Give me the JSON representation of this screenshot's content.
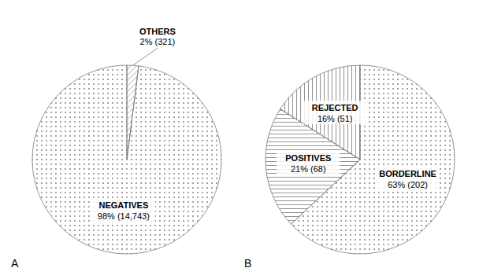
{
  "chart_data": [
    {
      "type": "pie",
      "title": "A",
      "categories": [
        "OTHERS",
        "NEGATIVES"
      ],
      "values": [
        2,
        98
      ],
      "value_labels": [
        "2% (321)",
        "98% (14,743)"
      ],
      "data_labels": true,
      "color": "#777777"
    },
    {
      "type": "pie",
      "title": "B",
      "categories": [
        "BORDERLINE",
        "POSITIVES",
        "REJECTED"
      ],
      "values": [
        63,
        21,
        16
      ],
      "value_labels": [
        "63% (202)",
        "21% (68)",
        "16% (51)"
      ],
      "data_labels": true,
      "color": "#777777"
    }
  ]
}
